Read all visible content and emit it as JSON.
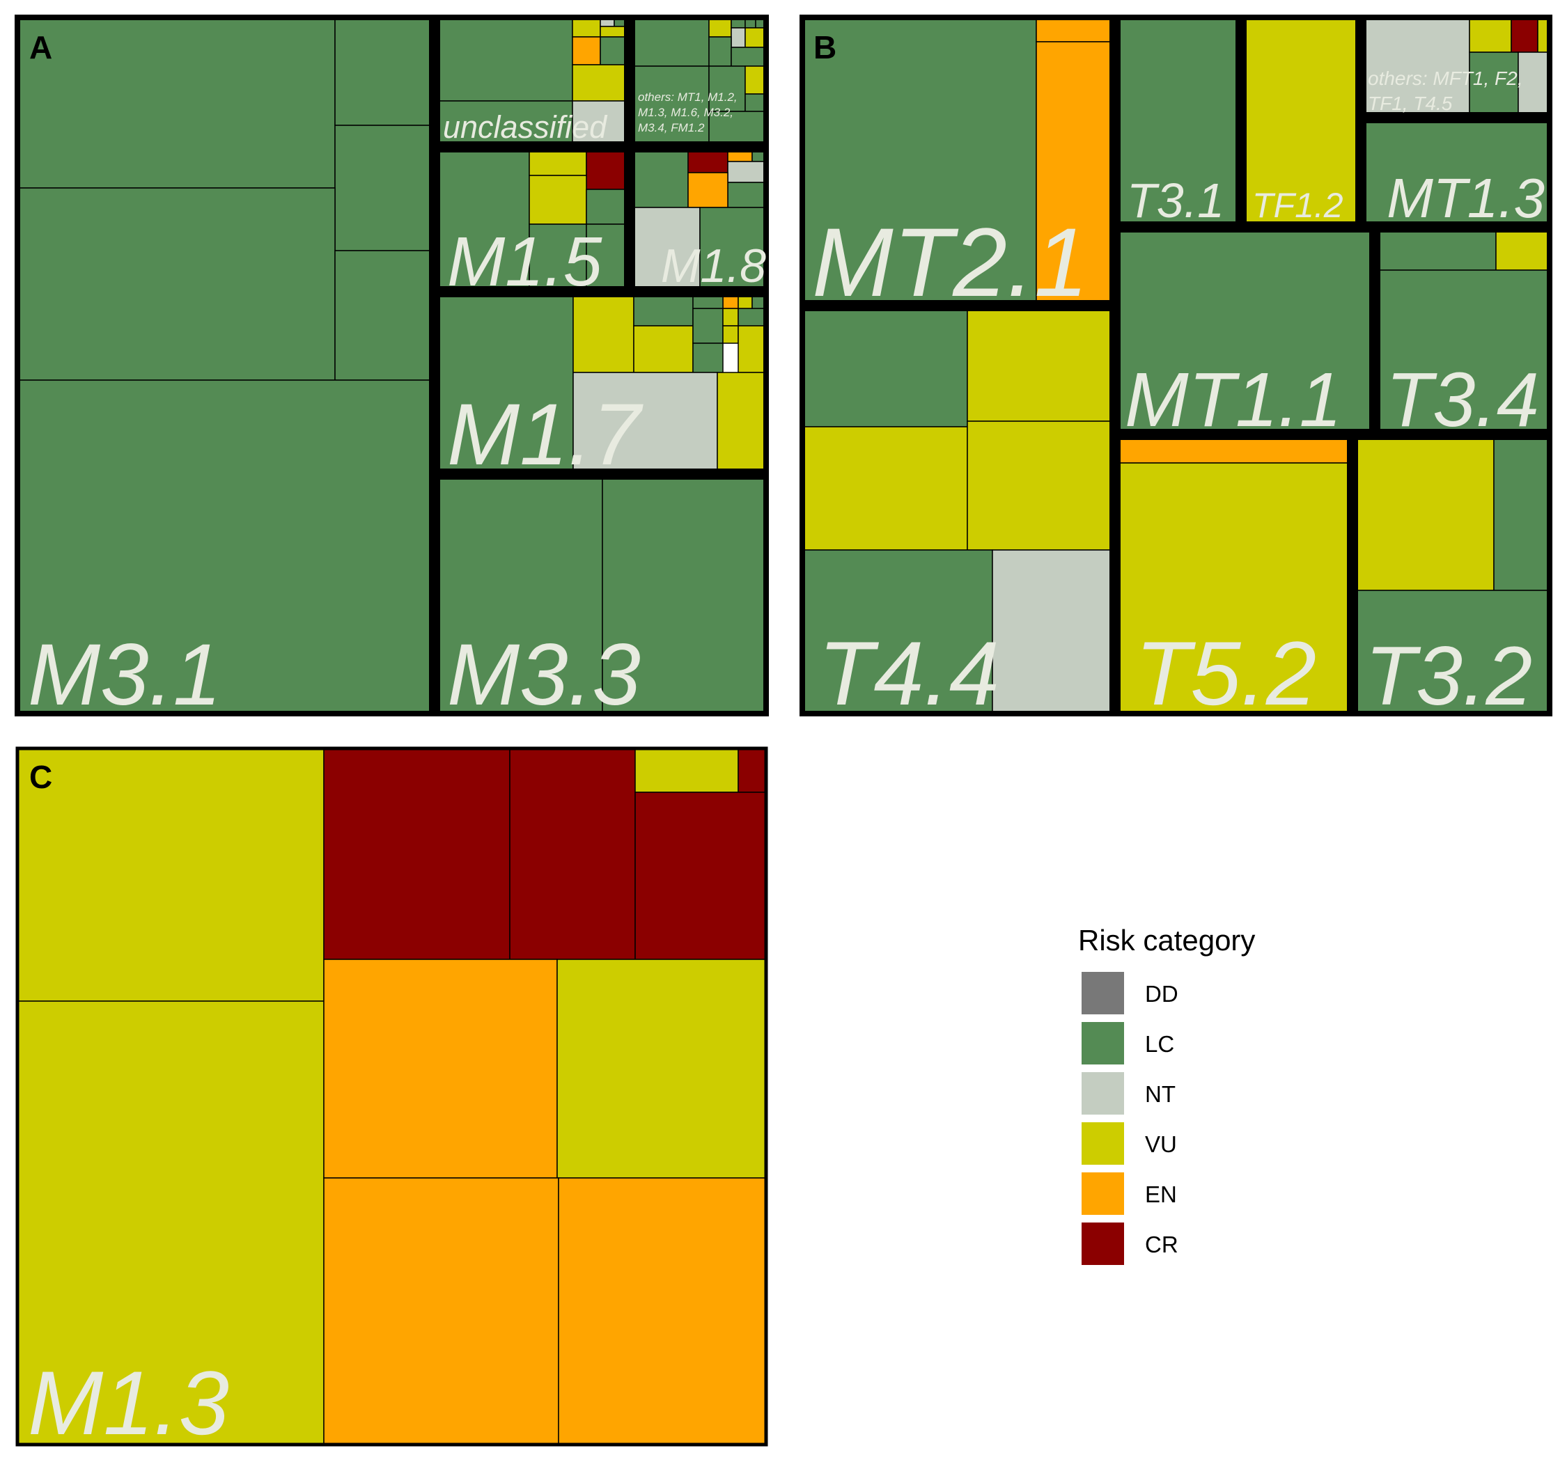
{
  "colors": {
    "DD": "#787878",
    "LC": "#548b54",
    "NT": "#c4cdc1",
    "VU": "#cdcd00",
    "EN": "#ffa500",
    "CR": "#8b0000"
  },
  "legend": {
    "title": "Risk category",
    "entries": [
      {
        "code": "DD",
        "label": "DD"
      },
      {
        "code": "LC",
        "label": "LC"
      },
      {
        "code": "NT",
        "label": "NT"
      },
      {
        "code": "VU",
        "label": "VU"
      },
      {
        "code": "EN",
        "label": "EN"
      },
      {
        "code": "CR",
        "label": "CR"
      }
    ]
  },
  "chart_data": [
    {
      "type": "treemap",
      "panel": "A",
      "groups": [
        {
          "name": "M3.1",
          "dominant": "LC"
        },
        {
          "name": "M3.3",
          "dominant": "LC"
        },
        {
          "name": "M1.7",
          "categories": [
            "LC",
            "VU",
            "NT",
            "EN"
          ]
        },
        {
          "name": "M1.5",
          "categories": [
            "LC",
            "VU",
            "CR"
          ]
        },
        {
          "name": "M1.8",
          "categories": [
            "LC",
            "NT",
            "CR",
            "EN",
            "VU"
          ]
        },
        {
          "name": "unclassified",
          "categories": [
            "LC",
            "VU",
            "NT",
            "EN"
          ]
        },
        {
          "name": "others: MT1, M1.2, M1.3, M1.6, M3.2, M3.4, FM1.2",
          "categories": [
            "LC",
            "VU",
            "NT",
            "EN"
          ]
        }
      ]
    },
    {
      "type": "treemap",
      "panel": "B",
      "groups": [
        {
          "name": "MT2.1",
          "categories": [
            "LC",
            "EN"
          ]
        },
        {
          "name": "T3.1",
          "categories": [
            "LC"
          ]
        },
        {
          "name": "TF1.2",
          "categories": [
            "VU"
          ]
        },
        {
          "name": "others: MFT1, F2, TF1, T4.5",
          "categories": [
            "NT",
            "VU",
            "CR",
            "LC"
          ]
        },
        {
          "name": "MT1.3",
          "categories": [
            "LC"
          ]
        },
        {
          "name": "MT1.1",
          "categories": [
            "LC"
          ]
        },
        {
          "name": "T3.4",
          "categories": [
            "LC",
            "VU"
          ]
        },
        {
          "name": "T4.4",
          "categories": [
            "LC",
            "VU",
            "NT"
          ]
        },
        {
          "name": "T5.2",
          "categories": [
            "EN",
            "VU"
          ]
        },
        {
          "name": "T3.2",
          "categories": [
            "VU",
            "LC"
          ]
        }
      ]
    },
    {
      "type": "treemap",
      "panel": "C",
      "groups": [
        {
          "name": "M1.3",
          "categories": [
            "VU",
            "CR",
            "EN"
          ]
        }
      ]
    }
  ]
}
